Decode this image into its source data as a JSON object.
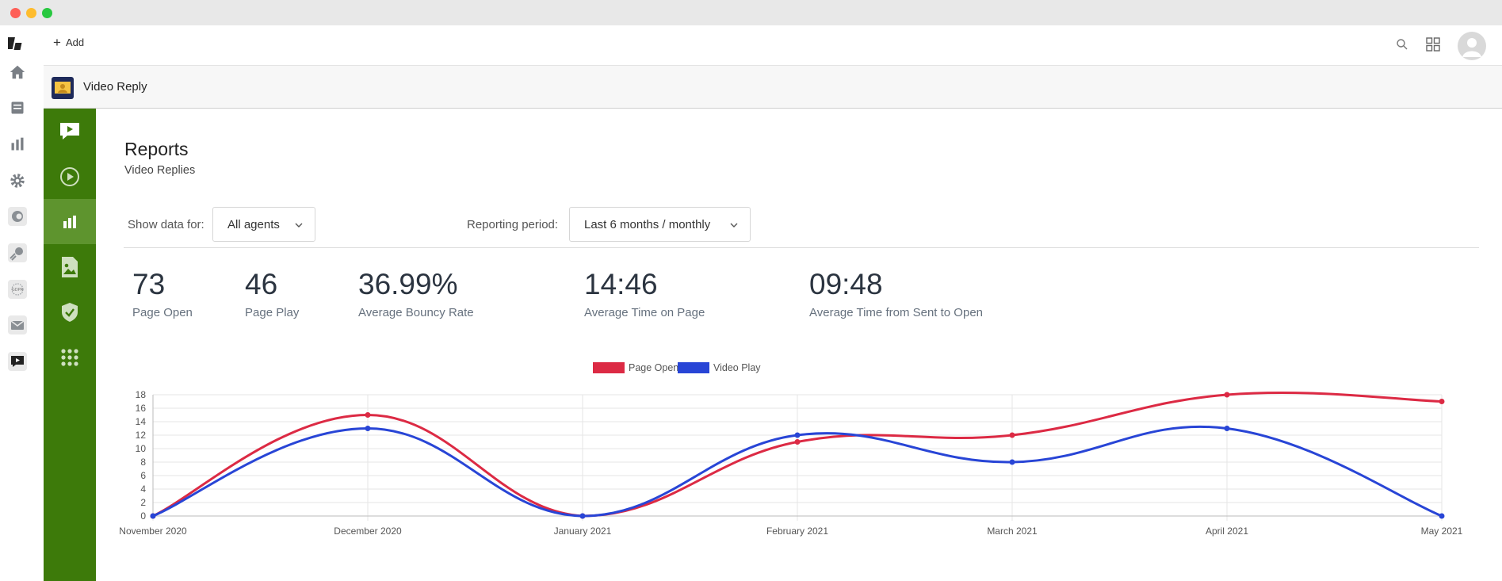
{
  "header": {
    "add_label": "Add"
  },
  "app": {
    "title": "Video Reply"
  },
  "page": {
    "title": "Reports",
    "subtitle": "Video Replies"
  },
  "filters": {
    "agents_label": "Show data for:",
    "agents_value": "All agents",
    "period_label": "Reporting period:",
    "period_value": "Last 6 months / monthly"
  },
  "stats": [
    {
      "value": "73",
      "label": "Page Open"
    },
    {
      "value": "46",
      "label": "Page Play"
    },
    {
      "value": "36.99%",
      "label": "Average Bouncy Rate"
    },
    {
      "value": "14:46",
      "label": "Average Time on Page"
    },
    {
      "value": "09:48",
      "label": "Average Time from Sent to Open"
    }
  ],
  "colors": {
    "accent_green": "#3d7a0a",
    "page_open": "#dc2a44",
    "video_play": "#2845d6"
  },
  "icons": {
    "rail": [
      "logo-icon",
      "home-icon",
      "inbox-icon",
      "reports-icon",
      "gear-icon",
      "app-icon",
      "app-icon",
      "gdpr-icon",
      "mail-icon",
      "video-reply-icon"
    ],
    "green_nav": [
      "chat-video-icon",
      "play-circle-icon",
      "bar-chart-icon",
      "image-file-icon",
      "shield-check-icon",
      "grid-dots-icon"
    ]
  },
  "chart_data": {
    "type": "line",
    "categories": [
      "November 2020",
      "December 2020",
      "January 2021",
      "February 2021",
      "March 2021",
      "April 2021",
      "May 2021"
    ],
    "series": [
      {
        "name": "Page Open",
        "values": [
          0,
          15,
          0,
          11,
          12,
          18,
          17
        ],
        "color": "#dc2a44"
      },
      {
        "name": "Video Play",
        "values": [
          0,
          13,
          0,
          12,
          8,
          13,
          0
        ],
        "color": "#2845d6"
      }
    ],
    "yticks": [
      "0",
      "2",
      "4",
      "6",
      "8",
      "10",
      "12",
      "14",
      "16",
      "18"
    ],
    "ylim": [
      0,
      18
    ],
    "legend_position": "top",
    "grid": true,
    "smooth": true
  }
}
